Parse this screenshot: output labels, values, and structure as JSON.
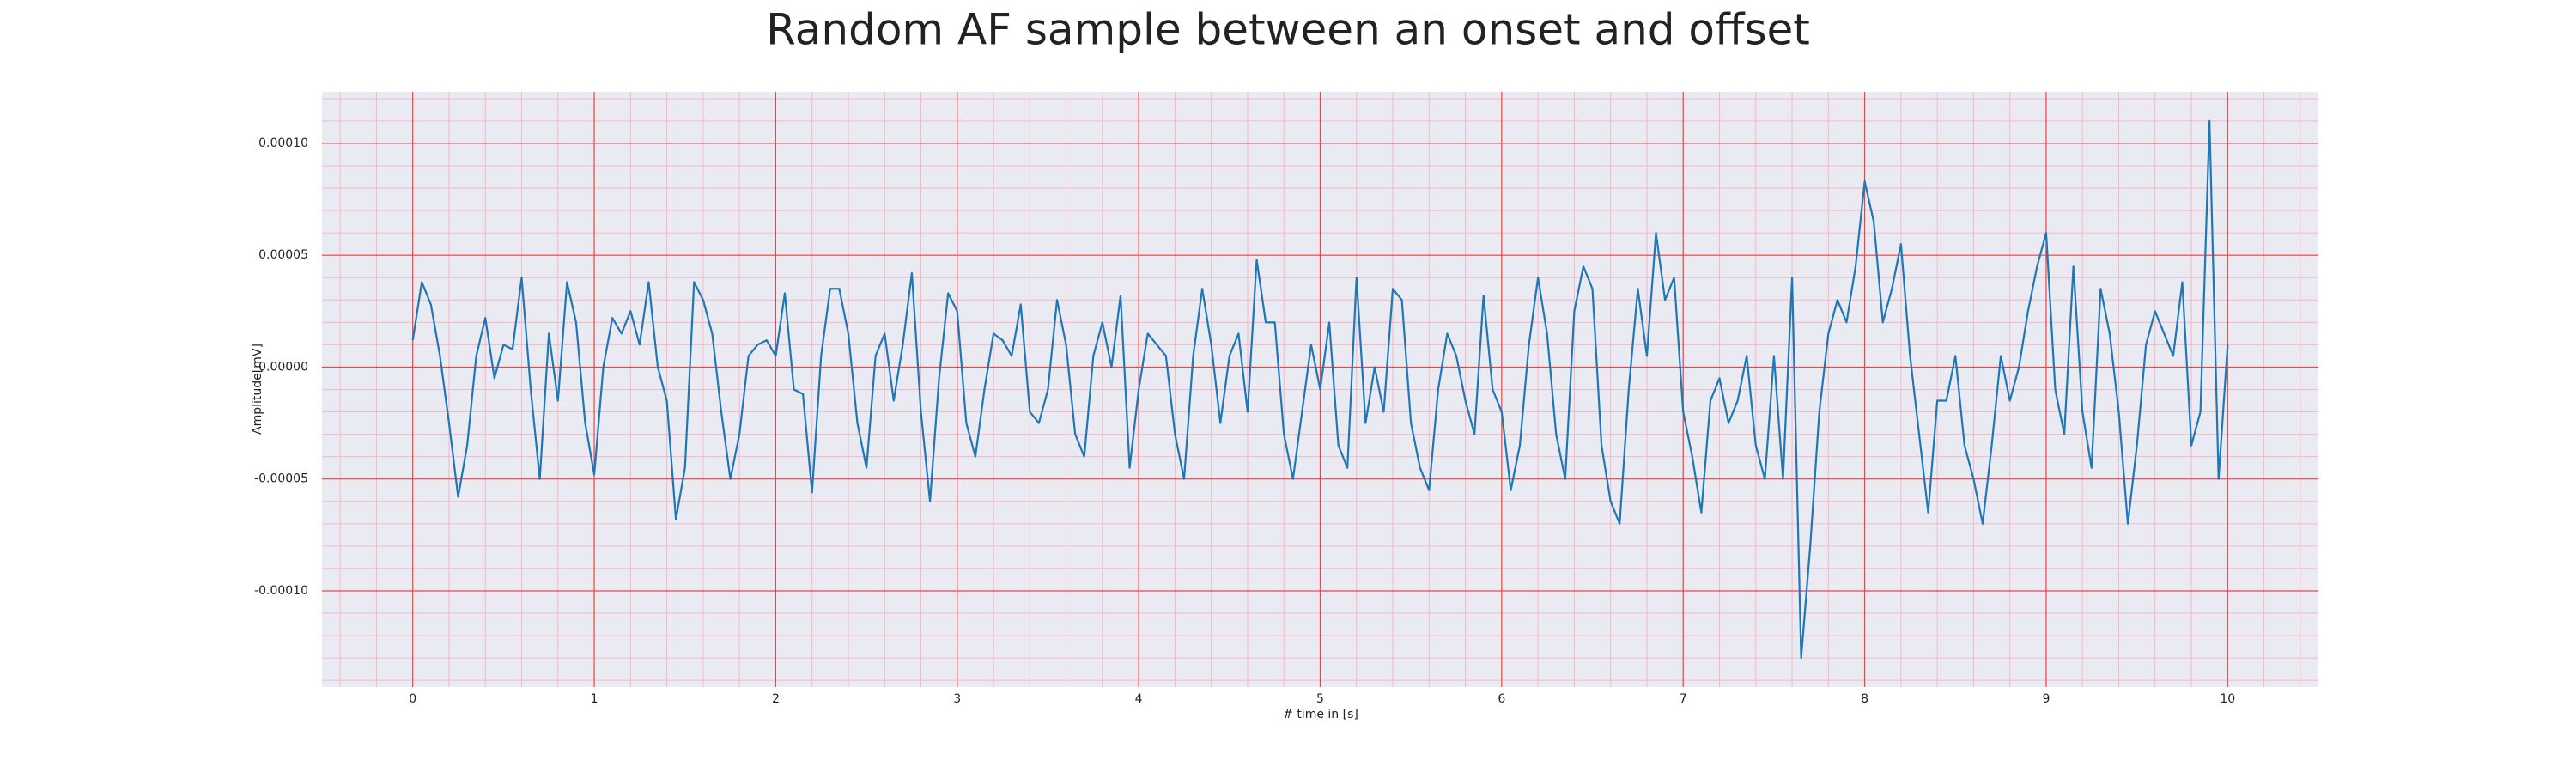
{
  "chart_data": {
    "type": "line",
    "title": "Random AF sample between an onset and offset",
    "xlabel": "# time in [s]",
    "ylabel": "Amplitude[mV]",
    "color": "#1f77b4",
    "grid": true,
    "minor_grid": true,
    "xlim": [
      -0.5,
      10.5
    ],
    "ylim": [
      -0.000143,
      0.000123
    ],
    "xticks": [
      0,
      1,
      2,
      3,
      4,
      5,
      6,
      7,
      8,
      9,
      10
    ],
    "yticks": [
      {
        "value": -0.0001,
        "label": "-0.00010"
      },
      {
        "value": -5e-05,
        "label": "-0.00005"
      },
      {
        "value": 0,
        "label": "0.00000"
      },
      {
        "value": 5e-05,
        "label": "0.00005"
      },
      {
        "value": 0.0001,
        "label": "0.00010"
      }
    ],
    "x": [
      0,
      0.05,
      0.1,
      0.15,
      0.2,
      0.25,
      0.3,
      0.35,
      0.4,
      0.45,
      0.5,
      0.55,
      0.6,
      0.65,
      0.7,
      0.75,
      0.8,
      0.85,
      0.9,
      0.95,
      1,
      1.05,
      1.1,
      1.15,
      1.2,
      1.25,
      1.3,
      1.35,
      1.4,
      1.45,
      1.5,
      1.55,
      1.6,
      1.65,
      1.7,
      1.75,
      1.8,
      1.85,
      1.9,
      1.95,
      2,
      2.05,
      2.1,
      2.15,
      2.2,
      2.25,
      2.3,
      2.35,
      2.4,
      2.45,
      2.5,
      2.55,
      2.6,
      2.65,
      2.7,
      2.75,
      2.8,
      2.85,
      2.9,
      2.95,
      3,
      3.05,
      3.1,
      3.15,
      3.2,
      3.25,
      3.3,
      3.35,
      3.4,
      3.45,
      3.5,
      3.55,
      3.6,
      3.65,
      3.7,
      3.75,
      3.8,
      3.85,
      3.9,
      3.95,
      4,
      4.05,
      4.1,
      4.15,
      4.2,
      4.25,
      4.3,
      4.35,
      4.4,
      4.45,
      4.5,
      4.55,
      4.6,
      4.65,
      4.7,
      4.75,
      4.8,
      4.85,
      4.9,
      4.95,
      5,
      5.05,
      5.1,
      5.15,
      5.2,
      5.25,
      5.3,
      5.35,
      5.4,
      5.45,
      5.5,
      5.55,
      5.6,
      5.65,
      5.7,
      5.75,
      5.8,
      5.85,
      5.9,
      5.95,
      6,
      6.05,
      6.1,
      6.15,
      6.2,
      6.25,
      6.3,
      6.35,
      6.4,
      6.45,
      6.5,
      6.55,
      6.6,
      6.65,
      6.7,
      6.75,
      6.8,
      6.85,
      6.9,
      6.95,
      7,
      7.05,
      7.1,
      7.15,
      7.2,
      7.25,
      7.3,
      7.35,
      7.4,
      7.45,
      7.5,
      7.55,
      7.6,
      7.65,
      7.7,
      7.75,
      7.8,
      7.85,
      7.9,
      7.95,
      8,
      8.05,
      8.1,
      8.15,
      8.2,
      8.25,
      8.3,
      8.35,
      8.4,
      8.45,
      8.5,
      8.55,
      8.6,
      8.65,
      8.7,
      8.75,
      8.8,
      8.85,
      8.9,
      8.95,
      9,
      9.05,
      9.1,
      9.15,
      9.2,
      9.25,
      9.3,
      9.35,
      9.4,
      9.45,
      9.5,
      9.55,
      9.6,
      9.65,
      9.7,
      9.75,
      9.8,
      9.85,
      9.9,
      9.95,
      10
    ],
    "values": [
      1.2e-05,
      3.8e-05,
      2.8e-05,
      5e-06,
      -2.5e-05,
      -5.8e-05,
      -3.5e-05,
      5e-06,
      2.2e-05,
      -5e-06,
      1e-05,
      8e-06,
      4e-05,
      -1e-05,
      -5e-05,
      1.5e-05,
      -1.5e-05,
      3.8e-05,
      2e-05,
      -2.5e-05,
      -4.8e-05,
      0,
      2.2e-05,
      1.5e-05,
      2.5e-05,
      1e-05,
      3.8e-05,
      0,
      -1.5e-05,
      -6.8e-05,
      -4.5e-05,
      3.8e-05,
      3e-05,
      1.5e-05,
      -2e-05,
      -5e-05,
      -3e-05,
      5e-06,
      1e-05,
      1.2e-05,
      5e-06,
      3.3e-05,
      -1e-05,
      -1.2e-05,
      -5.6e-05,
      5e-06,
      3.5e-05,
      3.5e-05,
      1.5e-05,
      -2.5e-05,
      -4.5e-05,
      5e-06,
      1.5e-05,
      -1.5e-05,
      1e-05,
      4.2e-05,
      -2e-05,
      -6e-05,
      -5e-06,
      3.3e-05,
      2.5e-05,
      -2.5e-05,
      -4e-05,
      -1e-05,
      1.5e-05,
      1.2e-05,
      5e-06,
      2.8e-05,
      -2e-05,
      -2.5e-05,
      -1e-05,
      3e-05,
      1e-05,
      -3e-05,
      -4e-05,
      5e-06,
      2e-05,
      0,
      3.2e-05,
      -4.5e-05,
      -1e-05,
      1.5e-05,
      1e-05,
      5e-06,
      -3e-05,
      -5e-05,
      5e-06,
      3.5e-05,
      1e-05,
      -2.5e-05,
      5e-06,
      1.5e-05,
      -2e-05,
      4.8e-05,
      2e-05,
      2e-05,
      -3e-05,
      -5e-05,
      -2e-05,
      1e-05,
      -1e-05,
      2e-05,
      -3.5e-05,
      -4.5e-05,
      4e-05,
      -2.5e-05,
      0,
      -2e-05,
      3.5e-05,
      3e-05,
      -2.5e-05,
      -4.5e-05,
      -5.5e-05,
      -1e-05,
      1.5e-05,
      5e-06,
      -1.5e-05,
      -3e-05,
      3.2e-05,
      -1e-05,
      -2e-05,
      -5.5e-05,
      -3.5e-05,
      1e-05,
      4e-05,
      1.5e-05,
      -3e-05,
      -5e-05,
      2.5e-05,
      4.5e-05,
      3.5e-05,
      -3.5e-05,
      -6e-05,
      -7e-05,
      -1e-05,
      3.5e-05,
      5e-06,
      6e-05,
      3e-05,
      4e-05,
      -2e-05,
      -4e-05,
      -6.5e-05,
      -1.5e-05,
      -5e-06,
      -2.5e-05,
      -1.5e-05,
      5e-06,
      -3.5e-05,
      -5e-05,
      5e-06,
      -5e-05,
      4e-05,
      -0.00013,
      -8e-05,
      -2e-05,
      1.5e-05,
      3e-05,
      2e-05,
      4.5e-05,
      8.3e-05,
      6.5e-05,
      2e-05,
      3.5e-05,
      5.5e-05,
      5e-06,
      -3e-05,
      -6.5e-05,
      -1.5e-05,
      -1.5e-05,
      5e-06,
      -3.5e-05,
      -5e-05,
      -7e-05,
      -3.5e-05,
      5e-06,
      -1.5e-05,
      0,
      2.5e-05,
      4.5e-05,
      6e-05,
      -1e-05,
      -3e-05,
      4.5e-05,
      -2e-05,
      -4.5e-05,
      3.5e-05,
      1.5e-05,
      -2e-05,
      -7e-05,
      -3.5e-05,
      1e-05,
      2.5e-05,
      1.5e-05,
      5e-06,
      3.8e-05,
      -3.5e-05,
      -2e-05,
      0.00011,
      -5e-05,
      1e-05
    ]
  }
}
